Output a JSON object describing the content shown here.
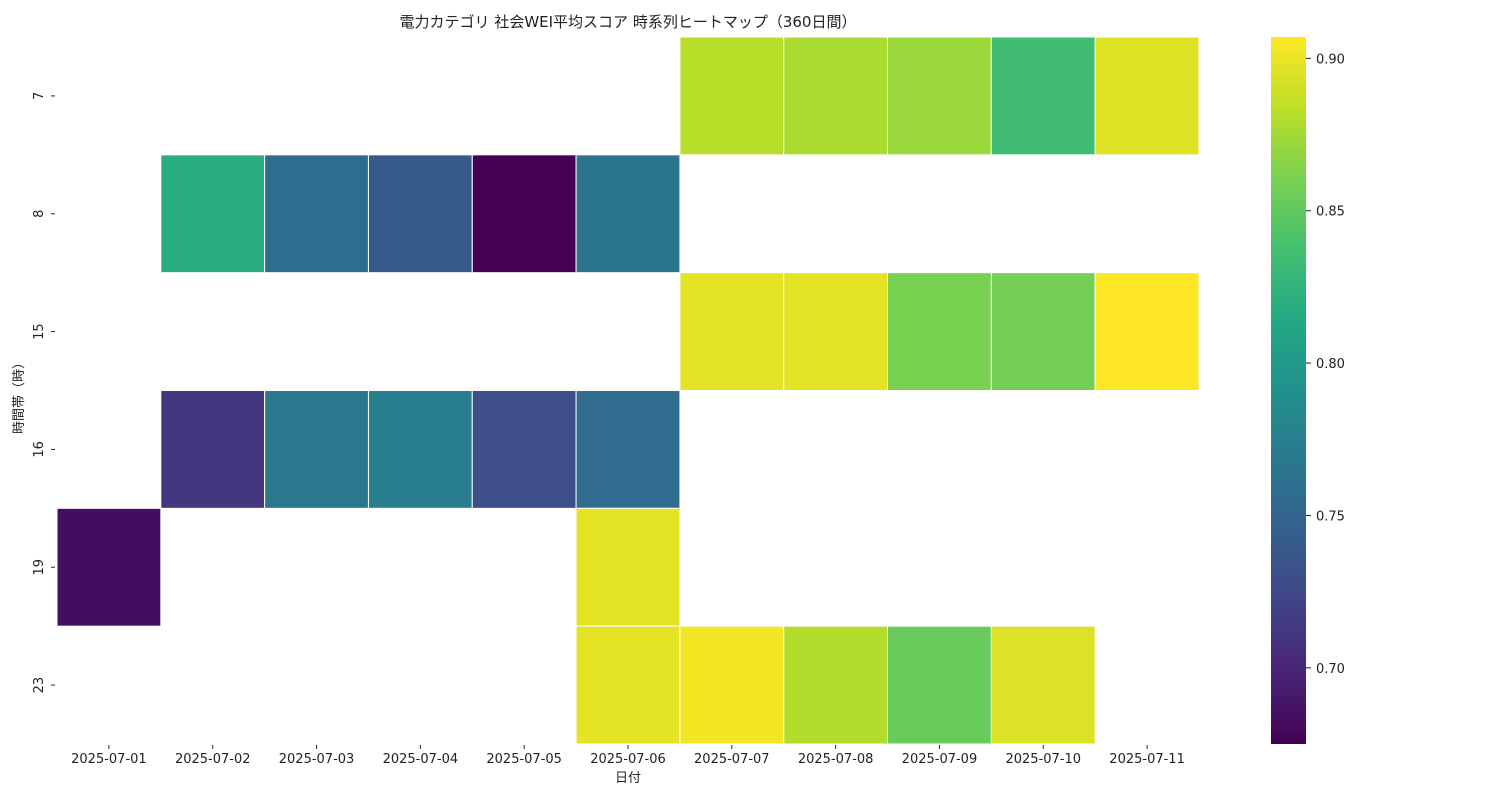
{
  "chart_data": {
    "type": "heatmap",
    "title": "電力カテゴリ 社会WEI平均スコア 時系列ヒートマップ（360日間）",
    "xlabel": "日付",
    "ylabel": "時間帯（時）",
    "x": [
      "2025-07-01",
      "2025-07-02",
      "2025-07-03",
      "2025-07-04",
      "2025-07-05",
      "2025-07-06",
      "2025-07-07",
      "2025-07-08",
      "2025-07-09",
      "2025-07-10",
      "2025-07-11"
    ],
    "y": [
      "7",
      "8",
      "15",
      "16",
      "19",
      "23"
    ],
    "values": [
      [
        null,
        null,
        null,
        null,
        null,
        null,
        0.882,
        0.878,
        0.872,
        0.835,
        0.896
      ],
      [
        null,
        0.82,
        0.758,
        0.74,
        0.675,
        0.765,
        null,
        null,
        null,
        null,
        null
      ],
      [
        null,
        null,
        null,
        null,
        null,
        null,
        0.898,
        0.898,
        0.86,
        0.858,
        0.907
      ],
      [
        null,
        0.712,
        0.767,
        0.773,
        0.73,
        0.757,
        null,
        null,
        null,
        null,
        null
      ],
      [
        0.683,
        null,
        null,
        null,
        null,
        0.898,
        null,
        null,
        null,
        null,
        null
      ],
      [
        null,
        null,
        null,
        null,
        null,
        0.898,
        0.903,
        0.88,
        0.853,
        0.895,
        null
      ]
    ],
    "colormap": "viridis",
    "colorbar": {
      "range": [
        0.675,
        0.907
      ],
      "ticks": [
        "0.70",
        "0.75",
        "0.80",
        "0.85",
        "0.90"
      ]
    },
    "grid": false,
    "cell_border_color": "#ffffff"
  }
}
